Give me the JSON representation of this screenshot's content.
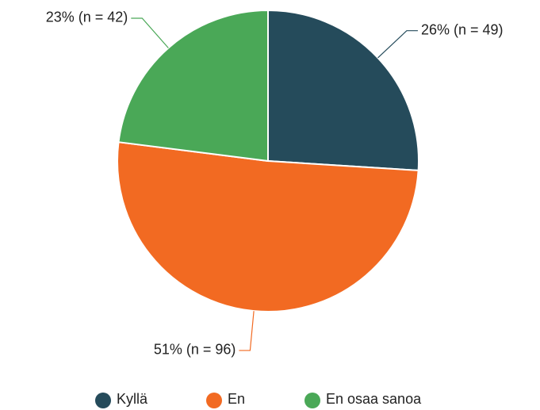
{
  "chart_data": {
    "type": "pie",
    "categories": [
      "Kyllä",
      "En",
      "En osaa sanoa"
    ],
    "values": [
      26,
      51,
      23
    ],
    "value_labels": [
      "26% (n = 49)",
      "51% (n = 96)",
      "23% (n = 42)"
    ],
    "colors": [
      "#254b5b",
      "#f26a22",
      "#4aa857"
    ],
    "legend": "bottom"
  }
}
